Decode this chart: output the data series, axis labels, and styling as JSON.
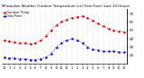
{
  "title": "Milwaukee Weather Outdoor Temperature (vs) Dew Point (Last 24 Hours)",
  "title_fontsize": 2.8,
  "bg_color": "#ffffff",
  "plot_bg": "#ffffff",
  "grid_color": "#888888",
  "temp_color": "#cc0000",
  "dew_color": "#0000cc",
  "temp_label": "Outdoor Temp",
  "dew_label": "Dew Point",
  "x_hours": [
    0,
    1,
    2,
    3,
    4,
    5,
    6,
    7,
    8,
    9,
    10,
    11,
    12,
    13,
    14,
    15,
    16,
    17,
    18,
    19,
    20,
    21,
    22,
    23
  ],
  "x_labels": [
    "12",
    "1",
    "2",
    "3",
    "4",
    "5",
    "6",
    "7",
    "8",
    "9",
    "10",
    "11",
    "12",
    "1",
    "2",
    "3",
    "4",
    "5",
    "6",
    "7",
    "8",
    "9",
    "10",
    "11"
  ],
  "temp_values": [
    38,
    37,
    36,
    35,
    35,
    34,
    35,
    38,
    43,
    50,
    56,
    60,
    63,
    65,
    66,
    67,
    65,
    62,
    58,
    55,
    52,
    50,
    49,
    48
  ],
  "dew_values": [
    18,
    17,
    17,
    16,
    16,
    15,
    15,
    16,
    18,
    22,
    30,
    35,
    38,
    40,
    38,
    35,
    30,
    27,
    26,
    25,
    25,
    25,
    24,
    24
  ],
  "ylim": [
    10,
    75
  ],
  "yticks": [
    20,
    30,
    40,
    50,
    60,
    70
  ],
  "ylabel_fontsize": 2.8,
  "xlabel_fontsize": 2.5,
  "legend_fontsize": 2.5,
  "markersize": 0.8,
  "linewidth": 0.6
}
